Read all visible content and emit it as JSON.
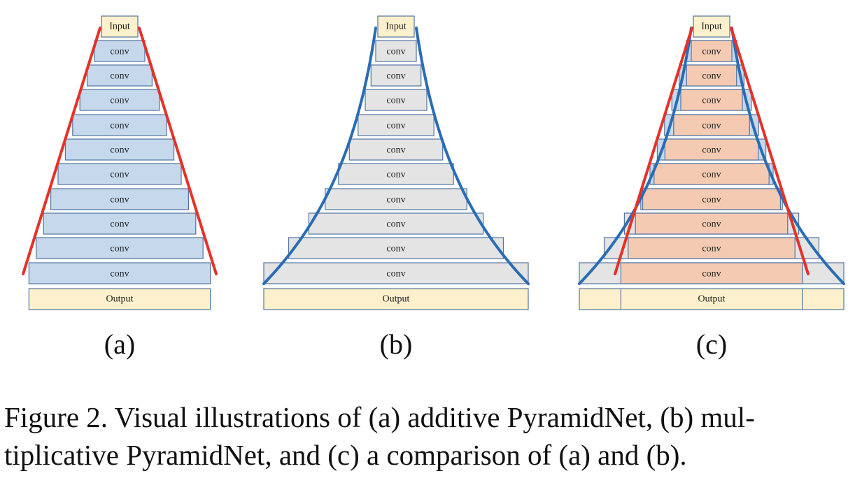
{
  "diagram": {
    "block_labels": {
      "input": "Input",
      "layer": "conv",
      "output": "Output"
    },
    "panels": [
      {
        "id": "a",
        "sublabel": "(a)",
        "layer_count": 10
      },
      {
        "id": "b",
        "sublabel": "(b)",
        "layer_count": 10
      },
      {
        "id": "c",
        "sublabel": "(c)",
        "layer_count": 10
      }
    ],
    "colors": {
      "additive_fill": "#c5d8ec",
      "multiplicative_fill": "#e4e4e4",
      "overlap_fill": "#f4cbb2",
      "io_fill": "#fdf0cc",
      "block_stroke": "#5474a0",
      "additive_line": "#e53228",
      "multiplicative_line": "#2a6cb5"
    }
  },
  "caption": {
    "line1": "Figure 2. Visual illustrations of (a) additive PyramidNet, (b) mul-",
    "line2": "tiplicative PyramidNet, and (c) a comparison of (a) and (b)."
  }
}
